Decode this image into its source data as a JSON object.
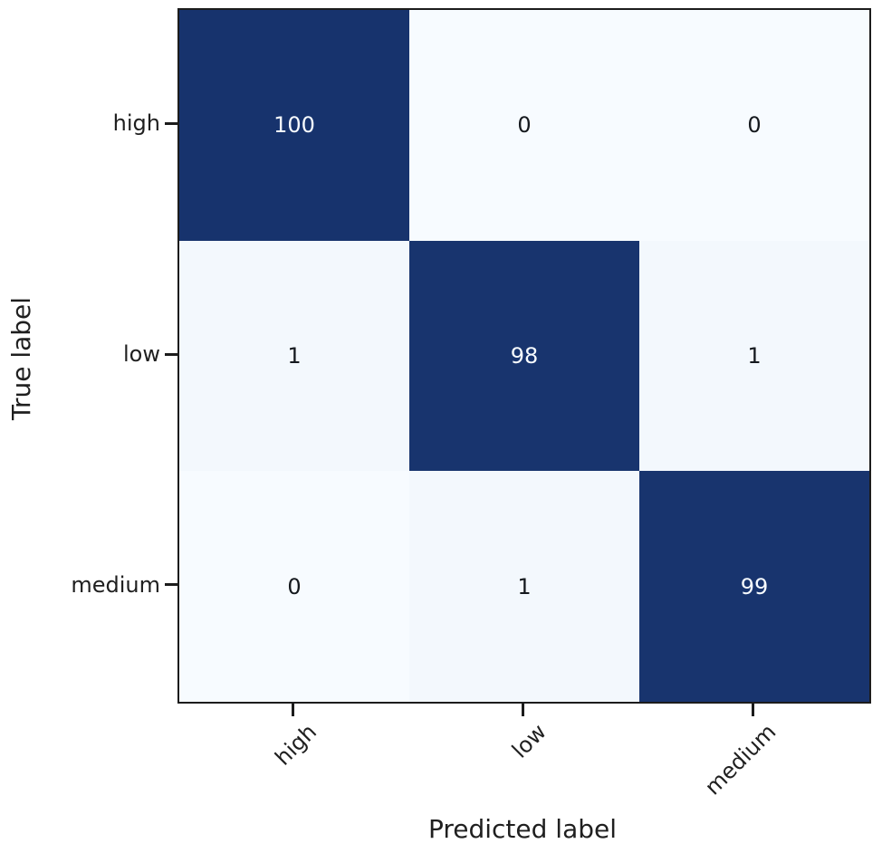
{
  "figure": {
    "background": "#ffffff",
    "frame_color": "#1c1c1c"
  },
  "chart_data": {
    "type": "heatmap",
    "title": "",
    "xlabel": "Predicted label",
    "ylabel": "True label",
    "x_categories": [
      "high",
      "low",
      "medium"
    ],
    "y_categories": [
      "high",
      "low",
      "medium"
    ],
    "matrix": [
      [
        100,
        0,
        0
      ],
      [
        1,
        98,
        1
      ],
      [
        0,
        1,
        99
      ]
    ],
    "value_range": [
      0,
      100
    ],
    "colormap": "Blues",
    "legend": "none",
    "grid": false,
    "colorbar": false,
    "cell_colors": [
      [
        "#17336d",
        "#f7fbff",
        "#f7fbff"
      ],
      [
        "#f3f8fd",
        "#18346e",
        "#f3f8fd"
      ],
      [
        "#f7fbff",
        "#f3f8fd",
        "#18346e"
      ]
    ],
    "annot_color_on_dark": "#f7fbff",
    "annot_color_on_light": "#15191e",
    "annot_threshold": 50,
    "tick_color": "#1c1c1c",
    "label_color": "#1f1f1f"
  }
}
